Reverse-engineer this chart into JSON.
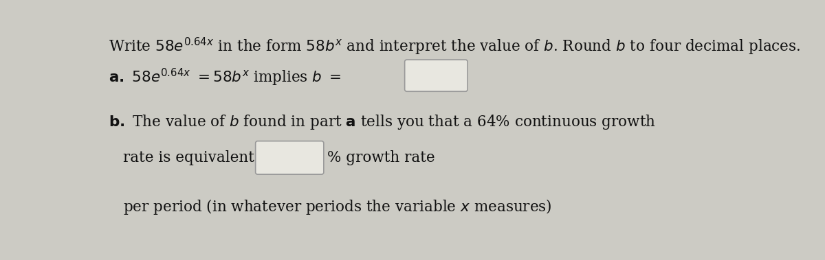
{
  "background_color": "#cccbc4",
  "box_color": "#e8e7e0",
  "box_edge_color": "#999999",
  "text_color": "#111111",
  "font_size": 15.5
}
